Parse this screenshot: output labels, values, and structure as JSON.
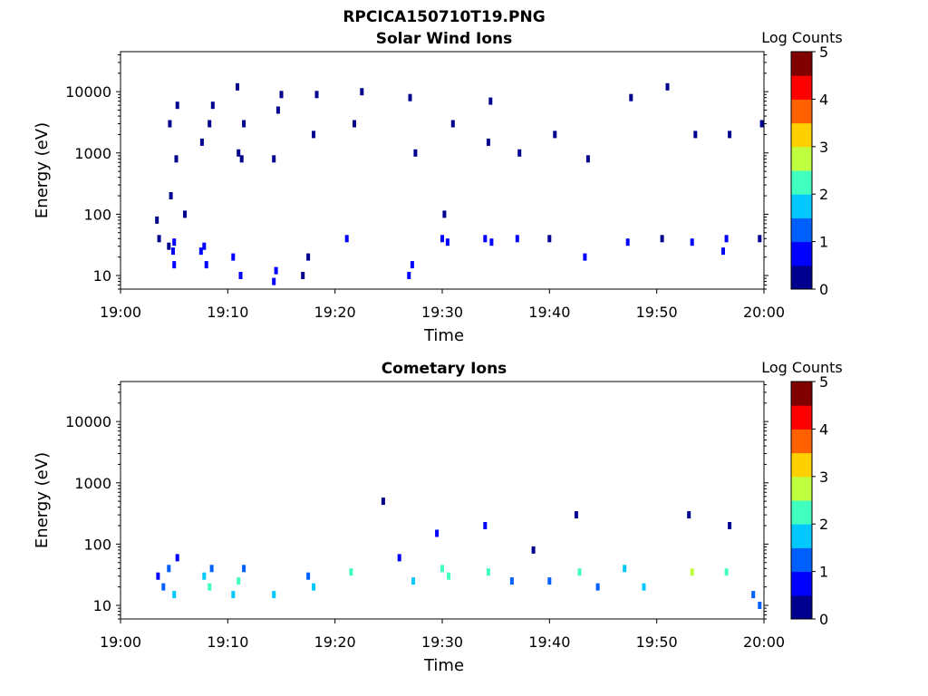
{
  "figure_title": "RPCICA150710T19.PNG",
  "colormap": [
    "#00008f",
    "#0000ff",
    "#0060ff",
    "#00c8ff",
    "#40ffbf",
    "#bfff40",
    "#ffd000",
    "#ff6000",
    "#ff0000",
    "#800000"
  ],
  "chart_data": [
    {
      "type": "heatmap",
      "title": "Solar Wind Ions",
      "xlabel": "Time",
      "ylabel": "Energy (eV)",
      "y_scale": "log",
      "ylim": [
        6,
        45000
      ],
      "xlim": [
        "19:00",
        "20:00"
      ],
      "x_ticks": [
        "19:00",
        "19:10",
        "19:20",
        "19:30",
        "19:40",
        "19:50",
        "20:00"
      ],
      "y_ticks": [
        {
          "value": 10,
          "label": "10"
        },
        {
          "value": 100,
          "label": "100"
        },
        {
          "value": 1000,
          "label": "1000"
        },
        {
          "value": 10000,
          "label": "10000"
        }
      ],
      "colorbar": {
        "label": "Log Counts",
        "range": [
          0,
          5
        ],
        "ticks": [
          "0",
          "1",
          "2",
          "3",
          "4",
          "5"
        ]
      },
      "cells": [
        {
          "t": "19:03.4",
          "e": 80,
          "v": 0.3
        },
        {
          "t": "19:03.6",
          "e": 40,
          "v": 0.4
        },
        {
          "t": "19:04.5",
          "e": 30,
          "v": 0.3
        },
        {
          "t": "19:04.9",
          "e": 25,
          "v": 0.8
        },
        {
          "t": "19:05.0",
          "e": 15,
          "v": 0.6
        },
        {
          "t": "19:05.0",
          "e": 35,
          "v": 0.7
        },
        {
          "t": "19:04.7",
          "e": 200,
          "v": 0.2
        },
        {
          "t": "19:05.2",
          "e": 800,
          "v": 0.2
        },
        {
          "t": "19:04.6",
          "e": 3000,
          "v": 0.2
        },
        {
          "t": "19:05.3",
          "e": 6000,
          "v": 0.2
        },
        {
          "t": "19:06.0",
          "e": 100,
          "v": 0.2
        },
        {
          "t": "19:07.5",
          "e": 25,
          "v": 0.9
        },
        {
          "t": "19:07.8",
          "e": 30,
          "v": 0.8
        },
        {
          "t": "19:08.0",
          "e": 15,
          "v": 0.7
        },
        {
          "t": "19:07.6",
          "e": 1500,
          "v": 0.2
        },
        {
          "t": "19:08.3",
          "e": 3000,
          "v": 0.2
        },
        {
          "t": "19:08.6",
          "e": 6000,
          "v": 0.2
        },
        {
          "t": "19:10.5",
          "e": 20,
          "v": 0.6
        },
        {
          "t": "19:11.2",
          "e": 10,
          "v": 0.5
        },
        {
          "t": "19:11.0",
          "e": 1000,
          "v": 0.3
        },
        {
          "t": "19:11.3",
          "e": 800,
          "v": 0.2
        },
        {
          "t": "19:11.5",
          "e": 3000,
          "v": 0.2
        },
        {
          "t": "19:10.9",
          "e": 12000,
          "v": 0.2
        },
        {
          "t": "19:14.3",
          "e": 8,
          "v": 0.7
        },
        {
          "t": "19:14.5",
          "e": 12,
          "v": 0.6
        },
        {
          "t": "19:14.7",
          "e": 5000,
          "v": 0.2
        },
        {
          "t": "19:15.0",
          "e": 9000,
          "v": 0.2
        },
        {
          "t": "19:14.3",
          "e": 800,
          "v": 0.2
        },
        {
          "t": "19:17.0",
          "e": 10,
          "v": 0.3
        },
        {
          "t": "19:17.5",
          "e": 20,
          "v": 0.4
        },
        {
          "t": "19:18.0",
          "e": 2000,
          "v": 0.2
        },
        {
          "t": "19:18.3",
          "e": 9000,
          "v": 0.2
        },
        {
          "t": "19:21.1",
          "e": 40,
          "v": 0.6
        },
        {
          "t": "19:21.8",
          "e": 3000,
          "v": 0.2
        },
        {
          "t": "19:22.5",
          "e": 10000,
          "v": 0.2
        },
        {
          "t": "19:26.9",
          "e": 10,
          "v": 0.7
        },
        {
          "t": "19:27.2",
          "e": 15,
          "v": 0.5
        },
        {
          "t": "19:27.5",
          "e": 1000,
          "v": 0.2
        },
        {
          "t": "19:27.0",
          "e": 8000,
          "v": 0.2
        },
        {
          "t": "19:30.0",
          "e": 40,
          "v": 0.8
        },
        {
          "t": "19:30.5",
          "e": 35,
          "v": 0.7
        },
        {
          "t": "19:30.2",
          "e": 100,
          "v": 0.4
        },
        {
          "t": "19:31.0",
          "e": 3000,
          "v": 0.2
        },
        {
          "t": "19:34.0",
          "e": 40,
          "v": 0.7
        },
        {
          "t": "19:34.6",
          "e": 35,
          "v": 0.6
        },
        {
          "t": "19:34.3",
          "e": 1500,
          "v": 0.2
        },
        {
          "t": "19:34.5",
          "e": 7000,
          "v": 0.2
        },
        {
          "t": "19:37.0",
          "e": 40,
          "v": 0.5
        },
        {
          "t": "19:37.2",
          "e": 1000,
          "v": 0.2
        },
        {
          "t": "19:40.0",
          "e": 40,
          "v": 0.4
        },
        {
          "t": "19:40.5",
          "e": 2000,
          "v": 0.2
        },
        {
          "t": "19:43.3",
          "e": 20,
          "v": 0.5
        },
        {
          "t": "19:43.6",
          "e": 800,
          "v": 0.2
        },
        {
          "t": "19:47.3",
          "e": 35,
          "v": 0.5
        },
        {
          "t": "19:47.6",
          "e": 8000,
          "v": 0.2
        },
        {
          "t": "19:50.5",
          "e": 40,
          "v": 0.4
        },
        {
          "t": "19:51.0",
          "e": 12000,
          "v": 0.2
        },
        {
          "t": "19:53.3",
          "e": 35,
          "v": 0.9
        },
        {
          "t": "19:53.6",
          "e": 2000,
          "v": 0.2
        },
        {
          "t": "19:56.2",
          "e": 25,
          "v": 0.6
        },
        {
          "t": "19:56.5",
          "e": 40,
          "v": 0.7
        },
        {
          "t": "19:56.8",
          "e": 2000,
          "v": 0.2
        },
        {
          "t": "19:59.6",
          "e": 40,
          "v": 0.4
        },
        {
          "t": "19:59.8",
          "e": 3000,
          "v": 0.2
        }
      ]
    },
    {
      "type": "heatmap",
      "title": "Cometary Ions",
      "xlabel": "Time",
      "ylabel": "Energy (eV)",
      "y_scale": "log",
      "ylim": [
        6,
        45000
      ],
      "xlim": [
        "19:00",
        "20:00"
      ],
      "x_ticks": [
        "19:00",
        "19:10",
        "19:20",
        "19:30",
        "19:40",
        "19:50",
        "20:00"
      ],
      "y_ticks": [
        {
          "value": 10,
          "label": "10"
        },
        {
          "value": 100,
          "label": "100"
        },
        {
          "value": 1000,
          "label": "1000"
        },
        {
          "value": 10000,
          "label": "10000"
        }
      ],
      "colorbar": {
        "label": "Log Counts",
        "range": [
          0,
          5
        ],
        "ticks": [
          "0",
          "1",
          "2",
          "3",
          "4",
          "5"
        ]
      },
      "cells": [
        {
          "t": "19:03.5",
          "e": 30,
          "v": 0.8
        },
        {
          "t": "19:04.0",
          "e": 20,
          "v": 1.2
        },
        {
          "t": "19:04.5",
          "e": 40,
          "v": 1.0
        },
        {
          "t": "19:05.0",
          "e": 15,
          "v": 1.5
        },
        {
          "t": "19:05.3",
          "e": 60,
          "v": 0.5
        },
        {
          "t": "19:07.8",
          "e": 30,
          "v": 1.6
        },
        {
          "t": "19:08.3",
          "e": 20,
          "v": 2.0
        },
        {
          "t": "19:08.5",
          "e": 40,
          "v": 1.2
        },
        {
          "t": "19:10.5",
          "e": 15,
          "v": 1.8
        },
        {
          "t": "19:11.0",
          "e": 25,
          "v": 2.1
        },
        {
          "t": "19:11.5",
          "e": 40,
          "v": 1.4
        },
        {
          "t": "19:14.3",
          "e": 15,
          "v": 1.5
        },
        {
          "t": "19:17.5",
          "e": 30,
          "v": 1.2
        },
        {
          "t": "19:18.0",
          "e": 20,
          "v": 1.6
        },
        {
          "t": "19:21.5",
          "e": 35,
          "v": 2.0
        },
        {
          "t": "19:24.5",
          "e": 500,
          "v": 0.2
        },
        {
          "t": "19:26.0",
          "e": 60,
          "v": 0.8
        },
        {
          "t": "19:27.3",
          "e": 25,
          "v": 1.8
        },
        {
          "t": "19:29.5",
          "e": 150,
          "v": 0.8
        },
        {
          "t": "19:30.0",
          "e": 40,
          "v": 2.0
        },
        {
          "t": "19:30.6",
          "e": 30,
          "v": 2.2
        },
        {
          "t": "19:34.0",
          "e": 200,
          "v": 0.6
        },
        {
          "t": "19:34.3",
          "e": 35,
          "v": 2.3
        },
        {
          "t": "19:36.5",
          "e": 25,
          "v": 1.2
        },
        {
          "t": "19:38.5",
          "e": 80,
          "v": 0.3
        },
        {
          "t": "19:40.0",
          "e": 25,
          "v": 1.4
        },
        {
          "t": "19:42.5",
          "e": 300,
          "v": 0.2
        },
        {
          "t": "19:42.8",
          "e": 35,
          "v": 2.0
        },
        {
          "t": "19:44.5",
          "e": 20,
          "v": 1.2
        },
        {
          "t": "19:47.0",
          "e": 40,
          "v": 1.5
        },
        {
          "t": "19:48.8",
          "e": 20,
          "v": 1.6
        },
        {
          "t": "19:53.0",
          "e": 300,
          "v": 0.4
        },
        {
          "t": "19:53.3",
          "e": 35,
          "v": 2.6
        },
        {
          "t": "19:56.5",
          "e": 35,
          "v": 2.0
        },
        {
          "t": "19:56.8",
          "e": 200,
          "v": 0.3
        },
        {
          "t": "19:59.0",
          "e": 15,
          "v": 1.0
        },
        {
          "t": "19:59.6",
          "e": 10,
          "v": 1.2
        }
      ]
    }
  ]
}
